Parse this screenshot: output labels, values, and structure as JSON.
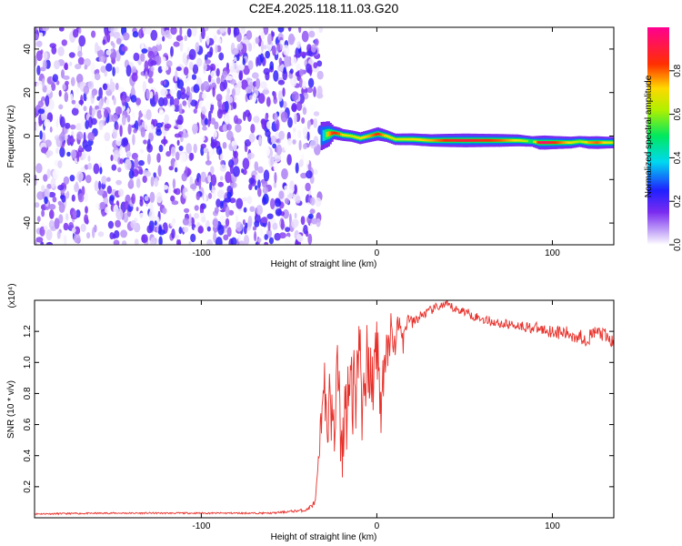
{
  "title": "C2E4.2025.118.11.03.G20",
  "colors": {
    "snr_line": "#e8302a",
    "noise_purple": "#7a2cf0",
    "background": "#ffffff"
  },
  "chart_data": [
    {
      "type": "heatmap",
      "title": "C2E4.2025.118.11.03.G20",
      "xlabel": "Height of straight line (km)",
      "ylabel": "Frequency (Hz)",
      "xlim": [
        -195,
        135
      ],
      "ylim": [
        -50,
        50
      ],
      "xticks": [
        -100,
        0,
        100
      ],
      "xtick_labels": [
        "-100",
        "0",
        "100"
      ],
      "yticks": [
        -40,
        -20,
        0,
        20,
        40
      ],
      "ytick_labels": [
        "-40",
        "-20",
        "0",
        "20",
        "40"
      ],
      "grid": false,
      "colorbar": {
        "label": "Normalized spectral amplitude",
        "range": [
          0,
          1
        ],
        "ticks": [
          0.0,
          0.2,
          0.4,
          0.6,
          0.8
        ],
        "tick_labels": [
          "0.0",
          "0.2",
          "0.4",
          "0.6",
          "0.8"
        ],
        "colormap": "rainbow (white-purple-blue-cyan-green-yellow-red-magenta)"
      },
      "regions": [
        {
          "name": "noise",
          "x_range": [
            -195,
            -32
          ],
          "freq_range": [
            -50,
            50
          ],
          "amplitude_range": [
            0.0,
            0.25
          ]
        },
        {
          "name": "signal",
          "x_range": [
            -32,
            135
          ]
        }
      ],
      "signal_ridge": {
        "x": [
          -32,
          -30,
          -28,
          -25,
          -22,
          -20,
          -15,
          -10,
          -5,
          0,
          5,
          10,
          20,
          30,
          40,
          50,
          60,
          70,
          80,
          88,
          92,
          95,
          100,
          110,
          115,
          120,
          125,
          130,
          135
        ],
        "freq": [
          0,
          0.5,
          1,
          1.5,
          1,
          0.5,
          0,
          -1,
          0,
          1,
          0,
          -1.5,
          -1.5,
          -2,
          -2,
          -2,
          -2,
          -2,
          -2,
          -2.5,
          -3,
          -3,
          -3,
          -3,
          -2.5,
          -3,
          -3,
          -3,
          -3
        ],
        "amplitude": [
          0.3,
          0.45,
          0.75,
          0.85,
          0.8,
          0.7,
          0.65,
          0.7,
          0.75,
          0.85,
          0.7,
          0.65,
          0.7,
          0.75,
          0.85,
          0.9,
          0.85,
          0.8,
          0.7,
          0.55,
          0.9,
          0.95,
          0.85,
          0.7,
          0.6,
          0.75,
          0.8,
          0.7,
          0.65
        ]
      }
    },
    {
      "type": "line",
      "xlabel": "Height of straight line (km)",
      "ylabel": "SNR (10 * v/v)",
      "y_multiplier": "(x10⁴)",
      "xlim": [
        -195,
        135
      ],
      "ylim": [
        0,
        1.4
      ],
      "xticks": [
        -100,
        0,
        100
      ],
      "xtick_labels": [
        "-100",
        "0",
        "100"
      ],
      "yticks": [
        0.2,
        0.4,
        0.6,
        0.8,
        1.0,
        1.2
      ],
      "ytick_labels": [
        "0.2",
        "0.4",
        "0.6",
        "0.8",
        "1.0",
        "1.2"
      ],
      "grid": false,
      "series": [
        {
          "x": [
            -195,
            -150,
            -100,
            -60,
            -40,
            -35,
            -33,
            -31,
            -30,
            -28,
            -27,
            -25,
            -22,
            -20,
            -18,
            -15,
            -12,
            -10,
            -8,
            -5,
            -2,
            0,
            2,
            5,
            8,
            10,
            12,
            15,
            18,
            20,
            25,
            30,
            35,
            40,
            45,
            50,
            55,
            60,
            70,
            80,
            90,
            100,
            110,
            115,
            120,
            125,
            130,
            135
          ],
          "y": [
            0.025,
            0.03,
            0.03,
            0.03,
            0.05,
            0.1,
            0.4,
            0.8,
            0.88,
            0.7,
            0.92,
            0.55,
            1.08,
            0.5,
            0.75,
            1.0,
            0.85,
            1.25,
            0.7,
            1.15,
            0.9,
            1.2,
            0.75,
            1.1,
            1.25,
            1.1,
            1.3,
            1.15,
            1.3,
            1.25,
            1.3,
            1.33,
            1.36,
            1.37,
            1.34,
            1.33,
            1.3,
            1.28,
            1.25,
            1.24,
            1.22,
            1.2,
            1.18,
            1.17,
            1.15,
            1.2,
            1.17,
            1.12
          ],
          "noise": [
            0.005,
            0.005,
            0.005,
            0.005,
            0.01,
            0.02,
            0.05,
            0.15,
            0.15,
            0.15,
            0.15,
            0.15,
            0.2,
            0.2,
            0.2,
            0.2,
            0.2,
            0.2,
            0.2,
            0.2,
            0.15,
            0.15,
            0.15,
            0.12,
            0.1,
            0.08,
            0.06,
            0.05,
            0.04,
            0.04,
            0.03,
            0.03,
            0.03,
            0.03,
            0.03,
            0.03,
            0.03,
            0.03,
            0.03,
            0.03,
            0.04,
            0.04,
            0.05,
            0.05,
            0.05,
            0.05,
            0.05,
            0.05
          ]
        }
      ]
    }
  ]
}
